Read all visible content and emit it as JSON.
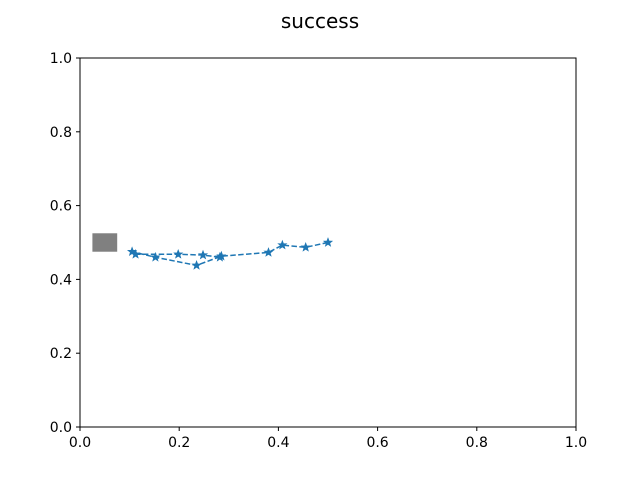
{
  "chart_data": {
    "type": "line",
    "title": "success",
    "xlabel": "",
    "ylabel": "",
    "xlim": [
      0.0,
      1.0
    ],
    "ylim": [
      0.0,
      1.0
    ],
    "xticks": [
      "0.0",
      "0.2",
      "0.4",
      "0.6",
      "0.8",
      "1.0"
    ],
    "yticks": [
      "0.0",
      "0.2",
      "0.4",
      "0.6",
      "0.8",
      "1.0"
    ],
    "grid": false,
    "legend": "none",
    "series": [
      {
        "line_style": "dashed",
        "marker": "star",
        "color": "#1f77b4",
        "x": [
          0.5,
          0.455,
          0.408,
          0.38,
          0.285,
          0.235,
          0.152,
          0.105,
          0.112,
          0.198,
          0.248,
          0.282
        ],
        "y": [
          0.5,
          0.487,
          0.493,
          0.473,
          0.463,
          0.438,
          0.46,
          0.475,
          0.468,
          0.468,
          0.466,
          0.46
        ]
      }
    ],
    "marker_box": {
      "color": "#808080",
      "x_range": [
        0.025,
        0.075
      ],
      "y_range": [
        0.475,
        0.525
      ]
    }
  }
}
